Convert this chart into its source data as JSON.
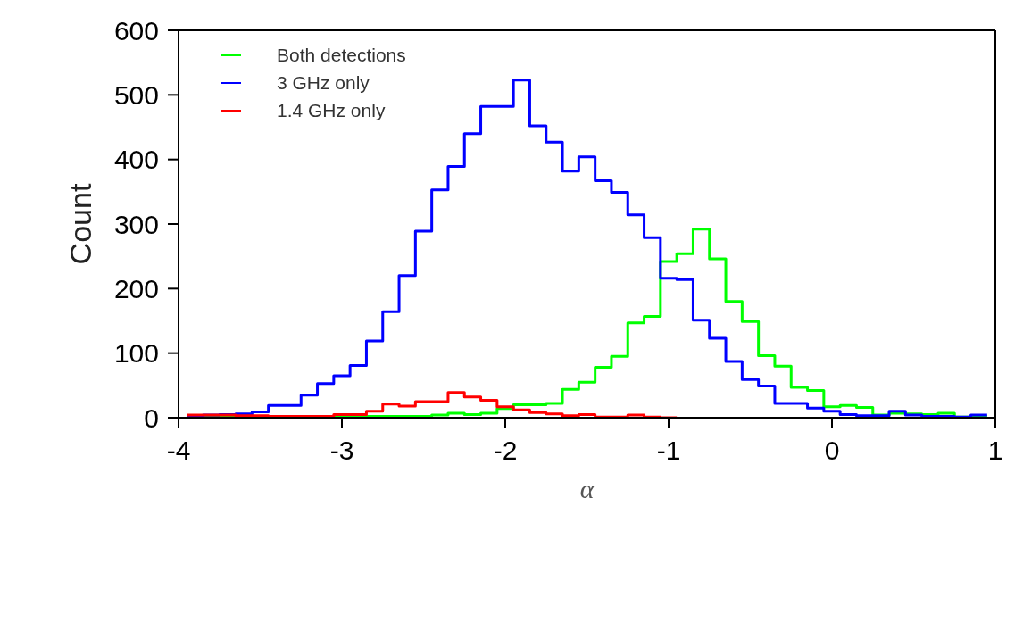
{
  "chart_data": {
    "type": "histogram",
    "xlabel": "α",
    "ylabel": "Count",
    "bins": [
      -3.95,
      -3.85,
      -3.75,
      -3.65,
      -3.55,
      -3.45,
      -3.35,
      -3.25,
      -3.15,
      -3.05,
      -2.95,
      -2.85,
      -2.75,
      -2.65,
      -2.55,
      -2.45,
      -2.35,
      -2.25,
      -2.15,
      -2.05,
      -1.95,
      -1.85,
      -1.75,
      -1.65,
      -1.55,
      -1.45,
      -1.35,
      -1.25,
      -1.15,
      -1.05,
      -0.95,
      -0.85,
      -0.75,
      -0.65,
      -0.55,
      -0.45,
      -0.35,
      -0.25,
      -0.15,
      -0.05,
      0.05,
      0.15,
      0.25,
      0.35,
      0.45,
      0.55,
      0.65,
      0.75,
      0.85,
      0.95
    ],
    "series": [
      {
        "name": "Both detections",
        "color": "#00ff00",
        "values": [
          1,
          1,
          1,
          1,
          1,
          1,
          1,
          1,
          2,
          2,
          3,
          2,
          2,
          2,
          2,
          4,
          7,
          5,
          7,
          14,
          20,
          20,
          22,
          44,
          55,
          78,
          95,
          147,
          157,
          242,
          254,
          292,
          246,
          180,
          149,
          96,
          80,
          47,
          42,
          17,
          19,
          16,
          4,
          7,
          6,
          5,
          7,
          1,
          2
        ]
      },
      {
        "name": "3 GHz only",
        "color": "#0000ff",
        "values": [
          3,
          4,
          5,
          6,
          9,
          19,
          19,
          35,
          53,
          65,
          81,
          119,
          164,
          220,
          289,
          353,
          389,
          440,
          482,
          482,
          523,
          452,
          427,
          382,
          404,
          367,
          349,
          314,
          279,
          216,
          214,
          151,
          123,
          87,
          59,
          49,
          22,
          22,
          15,
          10,
          5,
          3,
          3,
          10,
          4,
          2,
          2,
          1,
          4
        ]
      },
      {
        "name": "1.4 GHz only",
        "color": "#ff0000",
        "bins": [
          -3.95,
          -3.85,
          -3.75,
          -3.65,
          -3.55,
          -3.45,
          -3.35,
          -3.25,
          -3.15,
          -3.05,
          -2.95,
          -2.85,
          -2.75,
          -2.65,
          -2.55,
          -2.45,
          -2.35,
          -2.25,
          -2.15,
          -2.05,
          -1.95,
          -1.85,
          -1.75,
          -1.65,
          -1.55,
          -1.45,
          -1.35,
          -1.25,
          -1.15,
          -1.05,
          -0.95
        ],
        "values": [
          4,
          4,
          4,
          3,
          3,
          2,
          2,
          2,
          2,
          5,
          5,
          10,
          21,
          18,
          25,
          25,
          39,
          32,
          27,
          17,
          12,
          8,
          6,
          3,
          5,
          1,
          1,
          4,
          1,
          0
        ]
      }
    ],
    "xlim": [
      -4,
      1
    ],
    "xticks": [
      -4,
      -3,
      -2,
      -1,
      0,
      1
    ],
    "ylim": [
      0,
      600
    ],
    "yticks": [
      0,
      100,
      200,
      300,
      400,
      500,
      600
    ],
    "grid": false,
    "legend": "top left",
    "line_style": "solid",
    "marker": "none"
  }
}
